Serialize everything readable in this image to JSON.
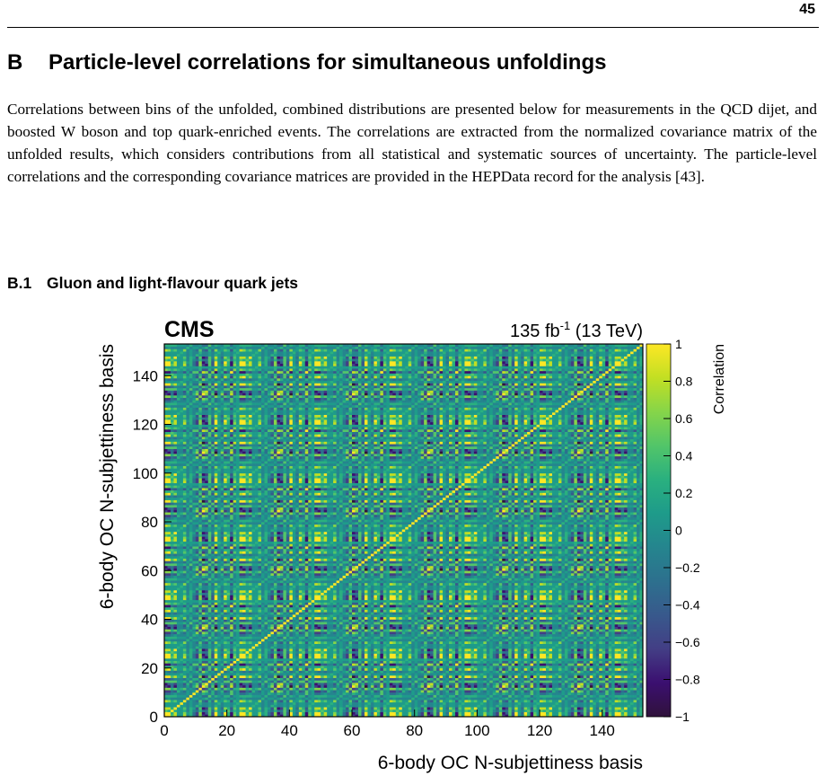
{
  "page": {
    "number": "45",
    "section": {
      "number": "B",
      "title": "Particle-level correlations for simultaneous unfoldings"
    },
    "paragraph": "Correlations between bins of the unfolded, combined distributions are presented below for measurements in the QCD dijet, and boosted W boson and top quark-enriched events. The correlations are extracted from the normalized covariance matrix of the unfolded results, which considers contributions from all statistical and systematic sources of uncertainty. The particle-level correlations and the corresponding covariance matrices are provided in the HEPData record for the analysis [43].",
    "subsection": {
      "number": "B.1",
      "title": "Gluon and light-flavour quark jets"
    }
  },
  "chart_data": {
    "type": "heatmap",
    "experiment_label": "CMS",
    "luminosity_label": {
      "value": "135 fb",
      "sup": "-1",
      "energy": " (13 TeV)"
    },
    "xlabel": "6-body OC N-subjettiness basis",
    "ylabel": "6-body OC N-subjettiness basis",
    "zlabel": "Correlation",
    "xlim": [
      0,
      153
    ],
    "ylim": [
      0,
      153
    ],
    "zlim": [
      -1,
      1
    ],
    "n_bins": 153,
    "x_ticks": [
      "0",
      "20",
      "40",
      "60",
      "80",
      "100",
      "120",
      "140"
    ],
    "y_ticks": [
      "0",
      "20",
      "40",
      "60",
      "80",
      "100",
      "120",
      "140"
    ],
    "z_ticks": [
      "1",
      "0.8",
      "0.6",
      "0.4",
      "0.2",
      "0",
      "−0.2",
      "−0.4",
      "−0.6",
      "−0.8",
      "−1"
    ],
    "colormap": [
      "#30123b",
      "#3b0f70",
      "#433e85",
      "#38598c",
      "#2d708e",
      "#25858e",
      "#1e9b8a",
      "#2ab07f",
      "#52c569",
      "#86d549",
      "#c2df23",
      "#fde725"
    ],
    "pattern_values": [
      0.75,
      -0.55,
      0.15,
      0.95,
      -0.1,
      0.45,
      -0.75,
      0.05,
      0.6,
      -0.3,
      0.85,
      0.25,
      -0.45,
      0.5,
      0.1,
      -0.85,
      0.7,
      0.35,
      -0.2,
      0.9,
      0.0,
      0.55,
      -0.65,
      0.3
    ],
    "diagonal_value": 1
  }
}
